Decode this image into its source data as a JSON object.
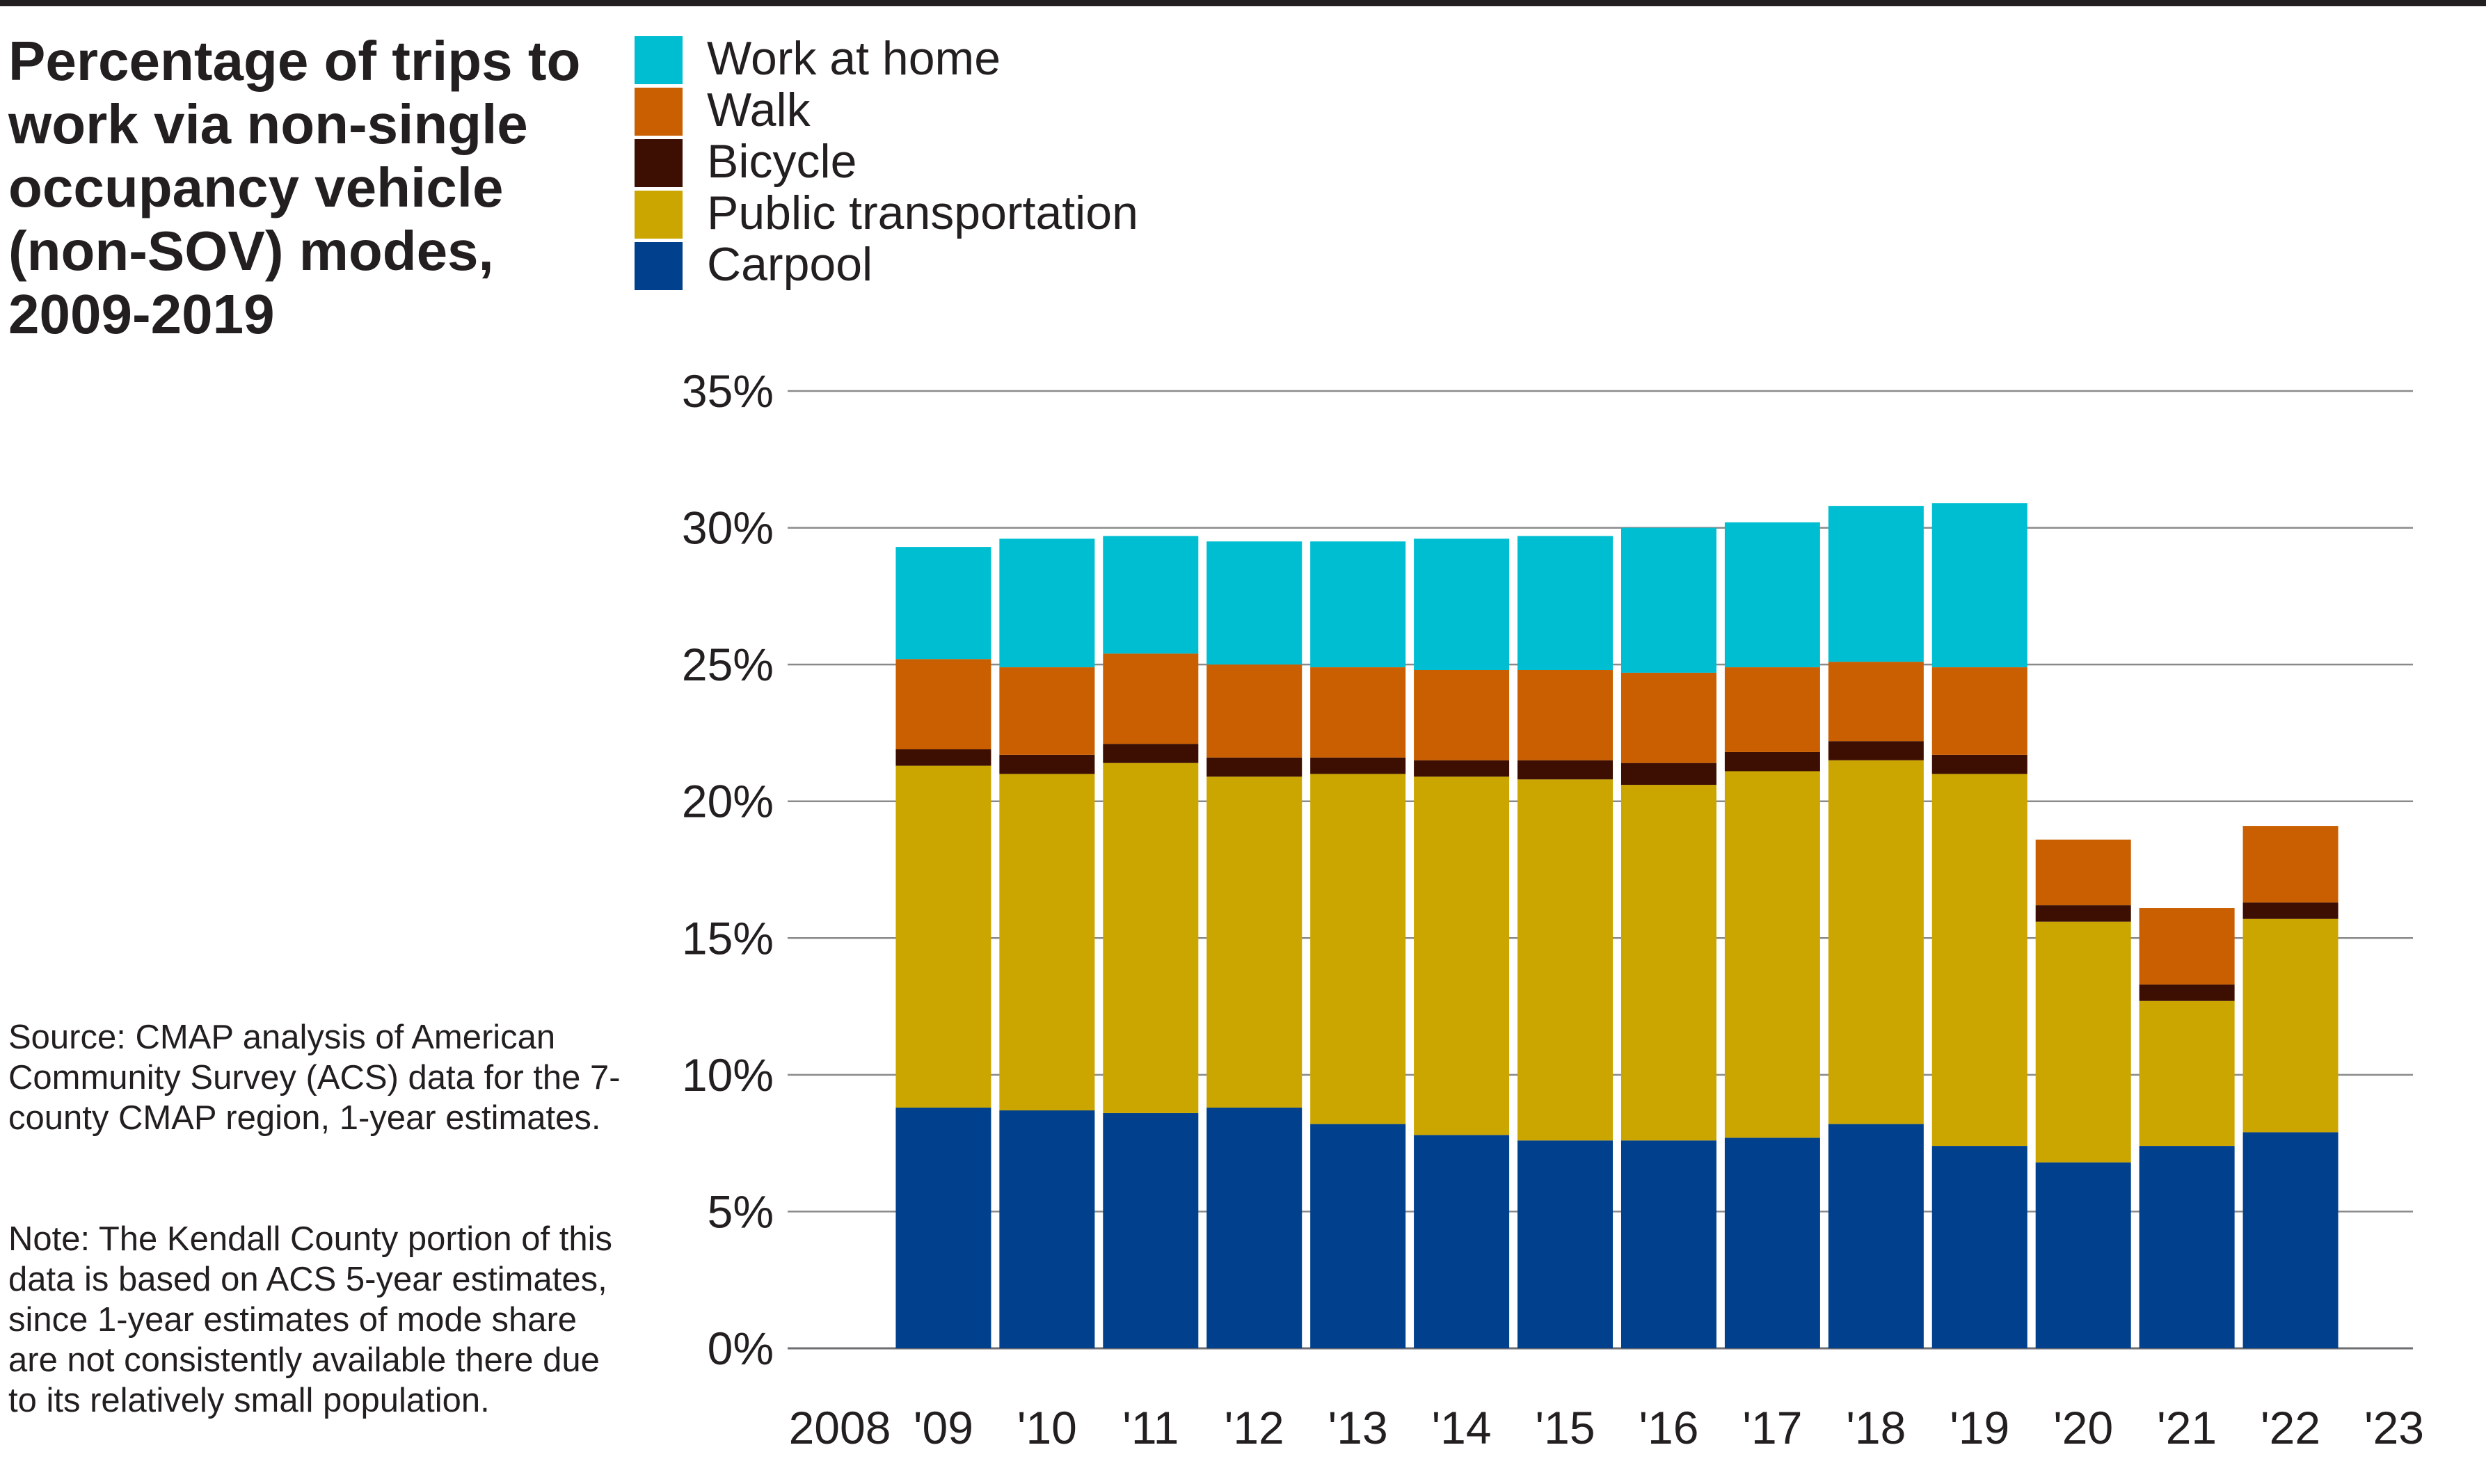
{
  "chart_data": {
    "type": "bar",
    "stacked": true,
    "title": "Percentage of trips to work via non-single occupancy vehicle (non-SOV) modes, 2009-2019",
    "source": "Source: CMAP analysis of American Community Survey (ACS) data for the 7-county CMAP region, 1-year estimates.",
    "note": "Note: The Kendall County portion of this data is based on ACS 5-year estimates, since 1-year estimates of mode share are not consistently available there due to its relatively small population.",
    "x_tick_labels": [
      "2008",
      "'09",
      "'10",
      "'11",
      "'12",
      "'13",
      "'14",
      "'15",
      "'16",
      "'17",
      "'18",
      "'19",
      "'20",
      "'21",
      "'22",
      "'23"
    ],
    "x_ticks": [
      2008,
      2009,
      2010,
      2011,
      2012,
      2013,
      2014,
      2015,
      2016,
      2017,
      2018,
      2019,
      2020,
      2021,
      2022,
      2023
    ],
    "xlim": [
      2008,
      2023
    ],
    "categories": [
      2009,
      2010,
      2011,
      2012,
      2013,
      2014,
      2015,
      2016,
      2017,
      2018,
      2019,
      2020,
      2021,
      2022
    ],
    "y_ticks": [
      0,
      5,
      10,
      15,
      20,
      25,
      30,
      35
    ],
    "y_tick_labels": [
      "0%",
      "5%",
      "10%",
      "15%",
      "20%",
      "25%",
      "30%",
      "35%"
    ],
    "ylim": [
      0,
      35
    ],
    "grid": "horizontal",
    "legend_position": "top-left",
    "series": [
      {
        "name": "Carpool",
        "color": "#00408d",
        "values": [
          8.8,
          8.7,
          8.6,
          8.8,
          8.2,
          7.8,
          7.6,
          7.6,
          7.7,
          8.2,
          7.4,
          6.8,
          7.4,
          7.9
        ]
      },
      {
        "name": "Public transportation",
        "color": "#cba601",
        "values": [
          12.5,
          12.3,
          12.8,
          12.1,
          12.8,
          13.1,
          13.2,
          13.0,
          13.4,
          13.3,
          13.6,
          8.8,
          5.3,
          7.8
        ]
      },
      {
        "name": "Bicycle",
        "color": "#3d0f02",
        "values": [
          0.6,
          0.7,
          0.7,
          0.7,
          0.6,
          0.6,
          0.7,
          0.8,
          0.7,
          0.7,
          0.7,
          0.6,
          0.6,
          0.6
        ]
      },
      {
        "name": "Walk",
        "color": "#c95f01",
        "values": [
          3.3,
          3.2,
          3.3,
          3.4,
          3.3,
          3.3,
          3.3,
          3.3,
          3.1,
          2.9,
          3.2,
          2.4,
          2.8,
          2.8
        ]
      },
      {
        "name": "Work at home",
        "color": "#00bed1",
        "values": [
          4.1,
          4.7,
          4.3,
          4.5,
          4.6,
          4.8,
          4.9,
          5.3,
          5.3,
          5.7,
          6.0,
          null,
          null,
          null
        ]
      }
    ]
  }
}
